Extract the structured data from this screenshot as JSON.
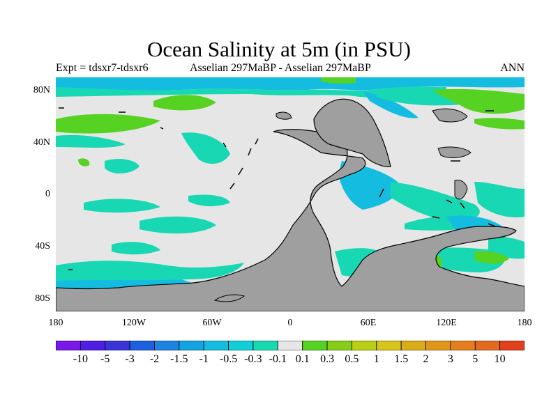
{
  "title": "Ocean Salinity at 5m (in PSU)",
  "subtitle_left": "Expt = tdsxr7-tdsxr6",
  "subtitle_center": "Asselian 297MaBP - Asselian 297MaBP",
  "subtitle_right": "ANN",
  "lat_labels": [
    "80N",
    "40N",
    "0",
    "40S",
    "80S"
  ],
  "lon_labels": [
    "180",
    "120W",
    "60W",
    "0",
    "60E",
    "120E",
    "180"
  ],
  "colorbar": {
    "labels": [
      "-10",
      "-5",
      "-3",
      "-2",
      "-1.5",
      "-1",
      "-0.5",
      "-0.3",
      "-0.1",
      "0.1",
      "0.3",
      "0.5",
      "1",
      "1.5",
      "2",
      "3",
      "5",
      "10"
    ],
    "colors": [
      "#7a18e8",
      "#4f1de4",
      "#3a34d8",
      "#1e5fe0",
      "#1c84e0",
      "#12a3e2",
      "#14bde0",
      "#10cfd6",
      "#18d8b4",
      "#e6e6e6",
      "#55d222",
      "#86cd18",
      "#b8cf14",
      "#d7c51a",
      "#d9ad17",
      "#e0961a",
      "#e57f1e",
      "#e36a1f",
      "#e0401c"
    ]
  },
  "colors": {
    "ocean_neutral": "#e6e6e6",
    "land": "#9f9f9f",
    "coast": "#000000"
  }
}
